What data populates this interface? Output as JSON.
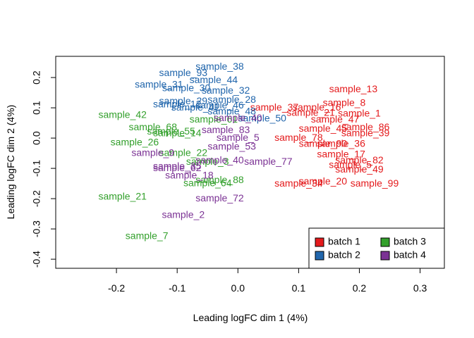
{
  "chart_data": {
    "type": "scatter",
    "xlabel": "Leading logFC dim 1 (4%)",
    "ylabel": "Leading logFC dim 2 (4%)",
    "xlim": [
      -0.3,
      0.34
    ],
    "ylim": [
      -0.43,
      0.27
    ],
    "xticks": [
      -0.2,
      -0.1,
      0.0,
      0.1,
      0.2,
      0.3
    ],
    "xtick_labels": [
      "-0.2",
      "-0.1",
      "0.0",
      "0.1",
      "0.2",
      "0.3"
    ],
    "yticks": [
      -0.4,
      -0.3,
      -0.2,
      -0.1,
      0.0,
      0.1,
      0.2
    ],
    "ytick_labels": [
      "-0.4",
      "-0.3",
      "-0.2",
      "-0.1",
      "0.0",
      "0.1",
      "0.2"
    ],
    "grid": false,
    "legend_position": "bottom-right",
    "series": [
      {
        "name": "batch 1",
        "color": "#E41A1C",
        "points": [
          {
            "label": "sample_13",
            "x": 0.19,
            "y": 0.16
          },
          {
            "label": "sample_8",
            "x": 0.175,
            "y": 0.115
          },
          {
            "label": "sample_37",
            "x": 0.06,
            "y": 0.1
          },
          {
            "label": "sample_16",
            "x": 0.13,
            "y": 0.1
          },
          {
            "label": "sample_1",
            "x": 0.2,
            "y": 0.08
          },
          {
            "label": "sample_21",
            "x": 0.12,
            "y": 0.082
          },
          {
            "label": "sample_47",
            "x": 0.16,
            "y": 0.06
          },
          {
            "label": "sample_86",
            "x": 0.21,
            "y": 0.035
          },
          {
            "label": "sample_39",
            "x": 0.21,
            "y": 0.015
          },
          {
            "label": "sample_45",
            "x": 0.14,
            "y": 0.03
          },
          {
            "label": "sample_78",
            "x": 0.1,
            "y": 0.0
          },
          {
            "label": "sample_90",
            "x": 0.14,
            "y": -0.02
          },
          {
            "label": "sample_36",
            "x": 0.17,
            "y": -0.02
          },
          {
            "label": "sample_17",
            "x": 0.17,
            "y": -0.055
          },
          {
            "label": "sample_82",
            "x": 0.2,
            "y": -0.075
          },
          {
            "label": "sample_5",
            "x": 0.185,
            "y": -0.09
          },
          {
            "label": "sample_49",
            "x": 0.2,
            "y": -0.105
          },
          {
            "label": "sample_20",
            "x": 0.14,
            "y": -0.145
          },
          {
            "label": "sample_99",
            "x": 0.225,
            "y": -0.152
          },
          {
            "label": "sample_34",
            "x": 0.1,
            "y": -0.152
          }
        ]
      },
      {
        "name": "batch 2",
        "color": "#2166AC",
        "points": [
          {
            "label": "sample_38",
            "x": -0.03,
            "y": 0.235
          },
          {
            "label": "sample_93",
            "x": -0.09,
            "y": 0.213
          },
          {
            "label": "sample_44",
            "x": -0.04,
            "y": 0.19
          },
          {
            "label": "sample_31",
            "x": -0.13,
            "y": 0.175
          },
          {
            "label": "sample_30",
            "x": -0.085,
            "y": 0.163
          },
          {
            "label": "sample_32",
            "x": -0.02,
            "y": 0.155
          },
          {
            "label": "sample_28",
            "x": -0.01,
            "y": 0.125
          },
          {
            "label": "sample_29",
            "x": -0.09,
            "y": 0.12
          },
          {
            "label": "sample_46",
            "x": -0.03,
            "y": 0.107
          },
          {
            "label": "sample_41",
            "x": -0.07,
            "y": 0.1
          },
          {
            "label": "sample_50",
            "x": 0.04,
            "y": 0.063
          },
          {
            "label": "sample_48",
            "x": -0.01,
            "y": 0.087
          },
          {
            "label": "sample_12",
            "x": -0.1,
            "y": 0.11
          }
        ]
      },
      {
        "name": "batch 3",
        "color": "#33A02C",
        "points": [
          {
            "label": "sample_42",
            "x": -0.19,
            "y": 0.075
          },
          {
            "label": "sample_68",
            "x": -0.14,
            "y": 0.035
          },
          {
            "label": "sample_14",
            "x": -0.1,
            "y": 0.015
          },
          {
            "label": "sample_26",
            "x": -0.17,
            "y": -0.015
          },
          {
            "label": "sample_61",
            "x": -0.04,
            "y": 0.06
          },
          {
            "label": "sample_22",
            "x": -0.09,
            "y": -0.05
          },
          {
            "label": "sample_3",
            "x": -0.05,
            "y": -0.08
          },
          {
            "label": "sample_88",
            "x": -0.03,
            "y": -0.14
          },
          {
            "label": "sample_64",
            "x": -0.05,
            "y": -0.15
          },
          {
            "label": "sample_21",
            "x": -0.19,
            "y": -0.195
          },
          {
            "label": "sample_7",
            "x": -0.15,
            "y": -0.325
          },
          {
            "label": "sample_55",
            "x": -0.11,
            "y": 0.02
          }
        ]
      },
      {
        "name": "batch 4",
        "color": "#7B3294",
        "points": [
          {
            "label": "sample_83",
            "x": -0.02,
            "y": 0.025
          },
          {
            "label": "sample_40",
            "x": -0.03,
            "y": -0.075
          },
          {
            "label": "sample_40",
            "x": 0.0,
            "y": 0.065
          },
          {
            "label": "sample_77",
            "x": 0.05,
            "y": -0.08
          },
          {
            "label": "sample_53",
            "x": -0.01,
            "y": -0.03
          },
          {
            "label": "sample_5",
            "x": 0.0,
            "y": 0.0
          },
          {
            "label": "sample_62",
            "x": -0.1,
            "y": -0.1
          },
          {
            "label": "sample_35",
            "x": -0.1,
            "y": -0.095
          },
          {
            "label": "sample_18",
            "x": -0.08,
            "y": -0.125
          },
          {
            "label": "sample_72",
            "x": -0.03,
            "y": -0.2
          },
          {
            "label": "sample_2",
            "x": -0.09,
            "y": -0.255
          },
          {
            "label": "sample_9",
            "x": -0.14,
            "y": -0.05
          }
        ]
      }
    ]
  }
}
